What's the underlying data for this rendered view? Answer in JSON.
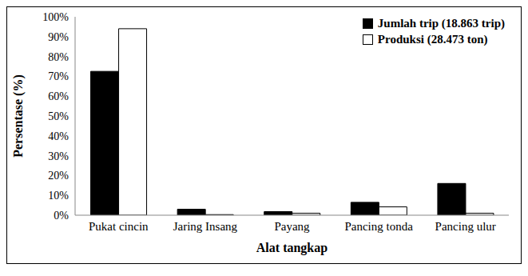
{
  "chart_data": {
    "type": "bar",
    "x_label": "Alat tangkap",
    "y_label": "Persentase (%)",
    "categories": [
      "Pukat cincin",
      "Jaring Insang",
      "Payang",
      "Pancing tonda",
      "Pancing ulur"
    ],
    "series": [
      {
        "name": "Jumlah trip (18.863 trip)",
        "color": "#000000",
        "values": [
          72.5,
          3,
          1.8,
          6.5,
          16
        ]
      },
      {
        "name": "Produksi (28.473 ton)",
        "color": "#ffffff",
        "values": [
          94,
          0.3,
          1,
          4.2,
          1
        ]
      }
    ],
    "ylim": [
      0,
      100
    ],
    "yticks": [
      {
        "value": 0,
        "label": "0%"
      },
      {
        "value": 10,
        "label": "10%"
      },
      {
        "value": 20,
        "label": "20%"
      },
      {
        "value": 30,
        "label": "30%"
      },
      {
        "value": 40,
        "label": "40%"
      },
      {
        "value": 50,
        "label": "50%"
      },
      {
        "value": 60,
        "label": "60%"
      },
      {
        "value": 70,
        "label": "70%"
      },
      {
        "value": 80,
        "label": "80%"
      },
      {
        "value": 90,
        "label": "90%"
      },
      {
        "value": 100,
        "label": "100%"
      }
    ],
    "grid": false,
    "legend": "upper right"
  }
}
